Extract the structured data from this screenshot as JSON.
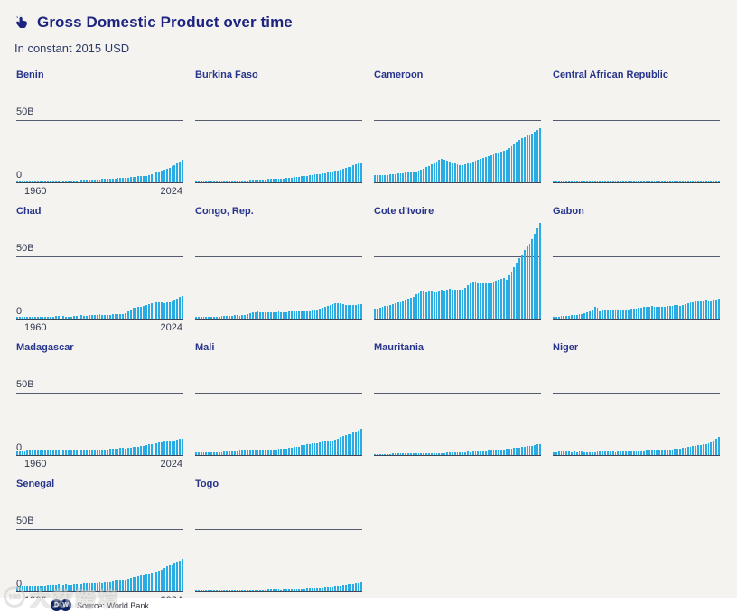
{
  "header": {
    "title": "Gross Domestic Product over time",
    "subtitle": "In constant 2015 USD"
  },
  "axis": {
    "y_top_label": "50B",
    "y_zero_label": "0",
    "x_start_label": "1960",
    "x_end_label": "2024"
  },
  "colors": {
    "bar": "#29ace3",
    "title_navy": "#1c2480",
    "country_navy": "#27348b",
    "background": "#f4f3f0",
    "gridline": "#565b6d",
    "baseline": "#3f4456"
  },
  "footer": {
    "logo_d": "D",
    "logo_w": "W",
    "source_label": "Source: World Bank"
  },
  "watermark": {
    "badge": "100",
    "text": "大数跨境"
  },
  "chart_data": {
    "type": "bar",
    "title": "Gross Domestic Product over time",
    "subtitle": "In constant 2015 USD",
    "layout": "small-multiples, 4 columns, axis labels on first column only",
    "unit": "billions of constant 2015 USD",
    "x_start": 1960,
    "x_end": 2024,
    "y_gridline": 50,
    "y_gridline_label": "50B",
    "ylim": [
      0,
      50
    ],
    "grid": "single 50B gridline + zero baseline per panel",
    "series": [
      {
        "name": "Benin",
        "values": [
          1.1,
          1.1,
          1.1,
          1.2,
          1.2,
          1.2,
          1.2,
          1.2,
          1.2,
          1.3,
          1.3,
          1.3,
          1.3,
          1.4,
          1.4,
          1.4,
          1.5,
          1.5,
          1.6,
          1.6,
          1.7,
          1.7,
          1.8,
          1.8,
          1.9,
          1.9,
          2.0,
          2.1,
          2.1,
          2.2,
          2.3,
          2.4,
          2.5,
          2.6,
          2.7,
          2.8,
          2.9,
          3.1,
          3.2,
          3.3,
          3.5,
          3.6,
          3.8,
          4.0,
          4.2,
          4.4,
          4.6,
          4.8,
          5.0,
          5.2,
          5.4,
          5.9,
          6.5,
          7.0,
          7.7,
          8.4,
          9.1,
          9.9,
          10.8,
          11.8,
          12.9,
          14.0,
          15.3,
          16.7,
          18.1
        ]
      },
      {
        "name": "Burkina Faso",
        "values": [
          0.9,
          0.9,
          1.0,
          1.0,
          1.0,
          1.1,
          1.1,
          1.1,
          1.2,
          1.2,
          1.2,
          1.3,
          1.3,
          1.4,
          1.4,
          1.5,
          1.5,
          1.6,
          1.6,
          1.7,
          1.8,
          1.9,
          1.9,
          2.0,
          2.1,
          2.2,
          2.4,
          2.4,
          2.6,
          2.6,
          2.7,
          2.9,
          2.9,
          3.0,
          3.1,
          3.3,
          3.6,
          3.8,
          4.1,
          4.4,
          4.5,
          4.8,
          5.0,
          5.4,
          5.6,
          5.9,
          6.2,
          6.5,
          6.9,
          7.1,
          7.5,
          8.0,
          8.5,
          9.0,
          9.4,
          9.8,
          10.4,
          11.0,
          11.7,
          12.4,
          12.6,
          13.5,
          14.4,
          15.3,
          16.3
        ]
      },
      {
        "name": "Cameroon",
        "values": [
          5.5,
          5.6,
          5.7,
          5.9,
          6.0,
          6.1,
          6.3,
          6.5,
          6.8,
          7.0,
          7.2,
          7.5,
          7.7,
          8.0,
          8.4,
          8.7,
          8.9,
          9.5,
          10.4,
          11.2,
          12.0,
          13.3,
          14.6,
          15.8,
          17.0,
          18.0,
          19.0,
          18.5,
          17.2,
          16.5,
          15.5,
          14.9,
          14.4,
          14.0,
          13.8,
          14.3,
          15.0,
          15.7,
          16.5,
          17.2,
          17.9,
          18.7,
          19.4,
          20.2,
          21.0,
          21.5,
          22.2,
          23.0,
          23.9,
          24.4,
          25.2,
          26.3,
          27.5,
          29.0,
          30.7,
          32.4,
          33.9,
          35.2,
          36.6,
          38.0,
          38.1,
          39.4,
          40.8,
          42.1,
          43.5
        ]
      },
      {
        "name": "Central African Republic",
        "values": [
          0.8,
          0.8,
          0.8,
          0.8,
          0.9,
          0.9,
          0.9,
          0.9,
          0.9,
          1.0,
          1.0,
          1.0,
          1.0,
          1.0,
          1.1,
          1.1,
          1.2,
          1.2,
          1.2,
          1.2,
          1.1,
          1.1,
          1.2,
          1.1,
          1.2,
          1.2,
          1.2,
          1.2,
          1.2,
          1.3,
          1.3,
          1.3,
          1.2,
          1.2,
          1.3,
          1.3,
          1.2,
          1.3,
          1.4,
          1.4,
          1.4,
          1.4,
          1.4,
          1.3,
          1.4,
          1.4,
          1.5,
          1.5,
          1.5,
          1.6,
          1.6,
          1.7,
          1.7,
          1.2,
          1.3,
          1.3,
          1.4,
          1.4,
          1.5,
          1.5,
          1.5,
          1.6,
          1.6,
          1.7,
          1.7
        ]
      },
      {
        "name": "Chad",
        "values": [
          1.4,
          1.4,
          1.5,
          1.4,
          1.4,
          1.5,
          1.4,
          1.5,
          1.5,
          1.6,
          1.6,
          1.6,
          1.5,
          1.6,
          1.7,
          1.9,
          1.9,
          2.0,
          2.0,
          1.8,
          1.7,
          1.8,
          1.9,
          2.2,
          2.3,
          2.7,
          2.5,
          2.5,
          2.9,
          3.0,
          2.9,
          3.1,
          3.3,
          2.8,
          3.0,
          3.0,
          3.1,
          3.3,
          3.5,
          3.5,
          3.4,
          3.8,
          4.1,
          5.5,
          7.4,
          8.7,
          8.8,
          9.2,
          9.5,
          9.9,
          11.2,
          11.3,
          12.3,
          12.9,
          13.8,
          14.0,
          13.1,
          12.7,
          13.0,
          13.4,
          14.5,
          15.3,
          16.3,
          17.4,
          18.5
        ]
      },
      {
        "name": "Congo, Rep.",
        "values": [
          1.2,
          1.3,
          1.3,
          1.4,
          1.4,
          1.5,
          1.6,
          1.6,
          1.7,
          1.8,
          1.9,
          2.1,
          2.2,
          2.4,
          2.5,
          2.7,
          2.6,
          2.5,
          2.7,
          3.0,
          3.6,
          4.3,
          4.9,
          5.2,
          5.5,
          5.4,
          5.0,
          5.0,
          5.1,
          5.2,
          5.3,
          5.4,
          5.5,
          5.4,
          5.1,
          5.3,
          5.6,
          5.5,
          5.7,
          5.5,
          5.9,
          6.1,
          6.4,
          6.4,
          6.7,
          7.2,
          7.6,
          7.5,
          7.9,
          8.5,
          9.8,
          10.1,
          10.8,
          11.4,
          12.1,
          12.4,
          12.0,
          11.5,
          11.2,
          11.1,
          10.9,
          11.0,
          11.2,
          11.6,
          11.9
        ]
      },
      {
        "name": "Cote d'Ivoire",
        "values": [
          7.8,
          8.2,
          8.4,
          9.5,
          10.3,
          10.2,
          11.0,
          11.4,
          12.5,
          13.0,
          13.9,
          14.8,
          15.3,
          16.2,
          16.8,
          17.7,
          19.9,
          21.2,
          22.8,
          22.3,
          22.0,
          22.6,
          22.6,
          21.8,
          21.5,
          22.4,
          23.0,
          22.7,
          22.9,
          23.6,
          23.3,
          23.2,
          23.1,
          22.9,
          23.2,
          24.8,
          26.6,
          28.1,
          29.4,
          29.9,
          29.2,
          29.3,
          28.8,
          28.3,
          28.8,
          29.3,
          29.8,
          30.3,
          31.0,
          32.0,
          32.6,
          31.2,
          35.0,
          38.0,
          41.2,
          44.8,
          48.4,
          51.8,
          55.2,
          58.8,
          60.0,
          64.1,
          68.1,
          72.3,
          76.8
        ]
      },
      {
        "name": "Gabon",
        "values": [
          1.6,
          1.7,
          1.8,
          1.9,
          2.1,
          2.3,
          2.5,
          2.7,
          2.9,
          3.2,
          3.5,
          3.9,
          4.3,
          5.0,
          6.3,
          7.2,
          9.3,
          8.4,
          6.8,
          7.0,
          7.2,
          7.4,
          7.3,
          7.4,
          7.6,
          7.5,
          7.3,
          7.0,
          7.2,
          7.6,
          7.9,
          8.3,
          8.2,
          8.5,
          8.8,
          9.2,
          9.5,
          9.8,
          10.0,
          9.6,
          9.4,
          9.6,
          9.5,
          9.8,
          9.9,
          10.2,
          10.1,
          10.6,
          10.7,
          10.5,
          11.2,
          11.9,
          12.5,
          13.2,
          13.7,
          14.2,
          14.5,
          14.6,
          14.7,
          14.9,
          14.6,
          14.8,
          15.1,
          15.4,
          15.7
        ]
      },
      {
        "name": "Madagascar",
        "values": [
          3.0,
          3.1,
          3.1,
          3.2,
          3.3,
          3.3,
          3.4,
          3.5,
          3.7,
          3.8,
          4.0,
          4.1,
          4.0,
          4.0,
          4.1,
          4.2,
          4.1,
          4.2,
          4.1,
          4.4,
          4.4,
          4.0,
          3.9,
          4.0,
          4.1,
          4.1,
          4.2,
          4.2,
          4.4,
          4.6,
          4.7,
          4.4,
          4.5,
          4.6,
          4.6,
          4.7,
          4.8,
          5.0,
          5.2,
          5.4,
          5.6,
          5.9,
          5.2,
          5.7,
          5.9,
          6.2,
          6.5,
          6.9,
          7.4,
          7.1,
          8.2,
          8.5,
          8.8,
          9.2,
          9.6,
          10.0,
          10.4,
          10.9,
          11.4,
          11.9,
          11.1,
          11.7,
          12.2,
          12.8,
          13.4
        ]
      },
      {
        "name": "Mali",
        "values": [
          1.9,
          1.9,
          2.0,
          2.1,
          2.1,
          2.2,
          2.2,
          2.3,
          2.3,
          2.4,
          2.5,
          2.6,
          2.7,
          2.7,
          2.6,
          2.9,
          3.2,
          3.4,
          3.3,
          3.6,
          3.5,
          3.4,
          3.6,
          3.8,
          3.9,
          3.7,
          4.0,
          4.1,
          4.1,
          4.5,
          4.4,
          4.5,
          4.9,
          5.0,
          5.1,
          5.4,
          5.6,
          5.9,
          6.3,
          6.7,
          6.9,
          7.7,
          7.9,
          8.4,
          8.6,
          9.1,
          9.4,
          9.7,
          10.2,
          10.6,
          11.2,
          11.6,
          11.5,
          11.8,
          12.6,
          13.4,
          14.2,
          15.0,
          15.8,
          16.4,
          17.0,
          17.9,
          18.9,
          19.9,
          21.0
        ]
      },
      {
        "name": "Mauritania",
        "values": [
          0.7,
          0.7,
          0.8,
          0.9,
          1.0,
          1.1,
          1.1,
          1.2,
          1.2,
          1.2,
          1.3,
          1.3,
          1.4,
          1.4,
          1.5,
          1.4,
          1.5,
          1.5,
          1.5,
          1.6,
          1.7,
          1.7,
          1.6,
          1.7,
          1.6,
          1.7,
          1.8,
          1.8,
          1.9,
          2.0,
          2.0,
          2.1,
          2.1,
          2.2,
          2.3,
          2.5,
          2.6,
          2.5,
          2.6,
          2.8,
          2.9,
          2.9,
          3.0,
          3.2,
          3.4,
          3.8,
          4.3,
          4.4,
          4.5,
          4.4,
          4.6,
          4.8,
          5.1,
          5.4,
          5.7,
          6.0,
          6.1,
          6.4,
          6.8,
          7.2,
          7.1,
          7.4,
          7.9,
          8.4,
          8.9
        ]
      },
      {
        "name": "Niger",
        "values": [
          2.4,
          2.5,
          2.6,
          2.7,
          2.6,
          2.7,
          2.6,
          2.5,
          2.6,
          2.5,
          2.6,
          2.7,
          2.5,
          2.3,
          2.5,
          2.4,
          2.5,
          2.6,
          2.9,
          3.0,
          3.2,
          3.1,
          3.2,
          3.0,
          2.5,
          2.7,
          2.9,
          2.9,
          3.1,
          3.1,
          3.0,
          3.1,
          2.9,
          3.0,
          3.1,
          3.2,
          3.3,
          3.4,
          3.8,
          3.7,
          3.6,
          3.9,
          4.0,
          4.2,
          4.1,
          4.4,
          4.6,
          4.8,
          5.2,
          5.1,
          5.6,
          5.7,
          6.3,
          6.6,
          7.1,
          7.4,
          7.8,
          8.2,
          8.8,
          9.0,
          9.5,
          10.4,
          11.6,
          13.0,
          14.5
        ]
      },
      {
        "name": "Senegal",
        "values": [
          4.0,
          4.1,
          4.2,
          4.2,
          4.3,
          4.4,
          4.4,
          4.4,
          4.6,
          4.5,
          4.7,
          4.6,
          4.9,
          4.8,
          5.0,
          5.3,
          5.5,
          5.3,
          5.2,
          5.5,
          5.4,
          5.4,
          5.9,
          6.0,
          5.8,
          6.0,
          6.3,
          6.6,
          6.8,
          6.6,
          6.9,
          6.9,
          7.1,
          6.9,
          7.1,
          7.5,
          7.6,
          7.9,
          8.4,
          8.9,
          9.2,
          9.6,
          9.7,
          10.3,
          10.9,
          11.5,
          11.8,
          12.4,
          12.8,
          13.1,
          13.6,
          13.8,
          14.4,
          14.8,
          15.5,
          16.5,
          17.5,
          18.8,
          20.0,
          21.0,
          21.3,
          22.6,
          23.5,
          24.7,
          26.0
        ]
      },
      {
        "name": "Togo",
        "values": [
          0.6,
          0.6,
          0.6,
          0.7,
          0.8,
          0.9,
          1.0,
          1.1,
          1.1,
          1.2,
          1.2,
          1.3,
          1.3,
          1.4,
          1.5,
          1.4,
          1.4,
          1.5,
          1.6,
          1.7,
          1.7,
          1.6,
          1.6,
          1.5,
          1.6,
          1.7,
          1.8,
          1.8,
          1.9,
          2.0,
          2.0,
          2.0,
          1.9,
          1.6,
          1.9,
          2.0,
          2.2,
          2.4,
          2.3,
          2.4,
          2.4,
          2.4,
          2.4,
          2.6,
          2.7,
          2.7,
          2.8,
          2.9,
          3.0,
          3.2,
          3.4,
          3.6,
          3.8,
          4.0,
          4.2,
          4.5,
          4.7,
          4.9,
          5.2,
          5.5,
          5.7,
          6.0,
          6.4,
          6.8,
          7.2
        ]
      }
    ]
  }
}
